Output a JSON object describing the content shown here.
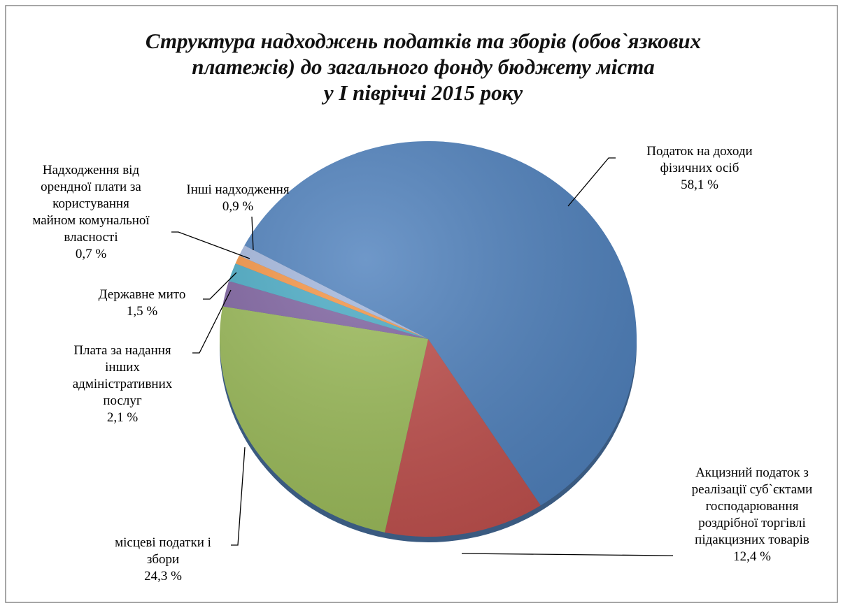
{
  "chart_data": {
    "type": "pie",
    "title": "Структура надходжень податків та зборів (обов`язкових\nплатежів) до загального фонду бюджету міста\nу І півріччі 2015 року",
    "categories": [
      "Податок на доходи\nфізичних осіб",
      "Акцизний податок з\nреалізації суб`єктами\nгосподарювання\nроздрібної торгівлі\nпідакцизних товарів",
      "місцеві податки і\nзбори",
      "Плата за надання\nінших\nадміністративних\nпослуг",
      "Державне мито",
      "Надходження від\nорендної плати за\nкористування\nмайном комунальної\nвласності",
      "Інші надходження"
    ],
    "values": [
      58.1,
      12.4,
      24.3,
      2.1,
      1.5,
      0.7,
      0.9
    ],
    "value_labels": [
      "58,1 %",
      "12,4 %",
      "24,3 %",
      "2,1 %",
      "1,5 %",
      "0,7 %",
      "0,9 %"
    ],
    "colors": [
      "#4f81bd",
      "#c0504d",
      "#9bbb59",
      "#8064a2",
      "#4bacc6",
      "#f79646",
      "#a5b8de"
    ]
  }
}
